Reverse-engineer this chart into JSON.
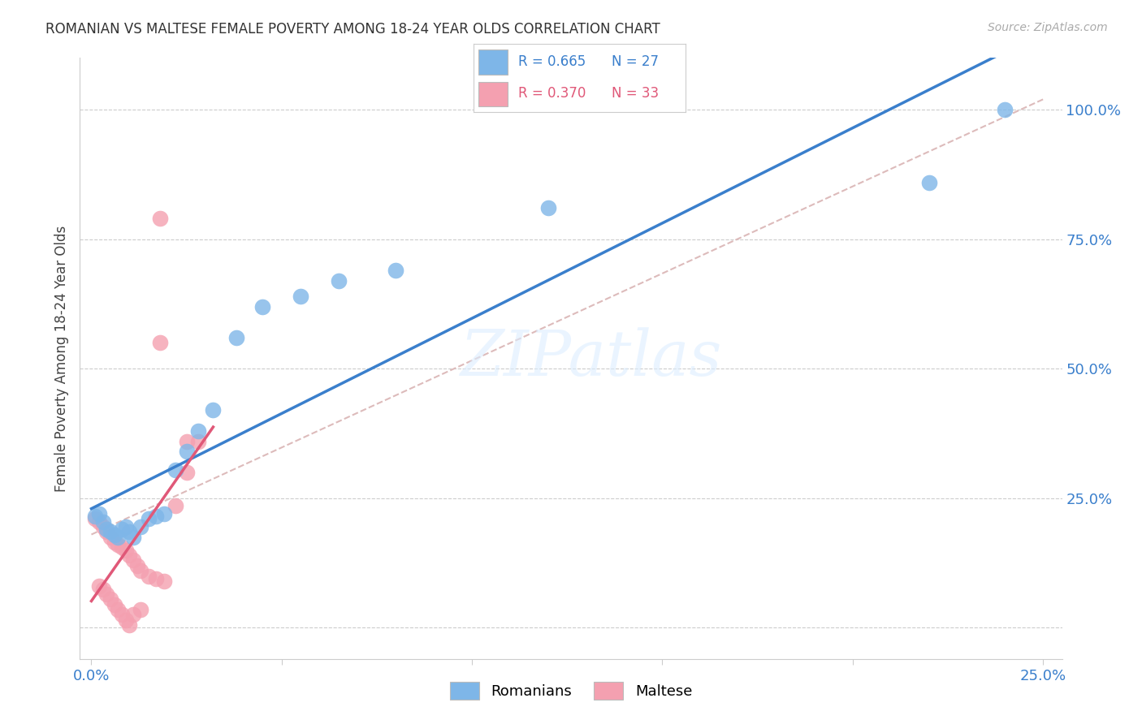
{
  "title": "ROMANIAN VS MALTESE FEMALE POVERTY AMONG 18-24 YEAR OLDS CORRELATION CHART",
  "source": "Source: ZipAtlas.com",
  "ylabel_label": "Female Poverty Among 18-24 Year Olds",
  "romanian_color": "#7EB6E8",
  "maltese_color": "#F4A0B0",
  "line_romanian_color": "#3A7FCC",
  "line_maltese_color": "#E05878",
  "romanian_R": "0.665",
  "romanian_N": "27",
  "maltese_R": "0.370",
  "maltese_N": "33",
  "legend_romanian": "Romanians",
  "legend_maltese": "Maltese",
  "watermark": "ZIPatlas",
  "romanian_x": [
    0.001,
    0.002,
    0.003,
    0.004,
    0.005,
    0.006,
    0.007,
    0.008,
    0.009,
    0.01,
    0.011,
    0.013,
    0.015,
    0.017,
    0.019,
    0.022,
    0.025,
    0.028,
    0.032,
    0.038,
    0.045,
    0.055,
    0.065,
    0.08,
    0.12,
    0.22,
    0.24
  ],
  "romanian_y": [
    0.215,
    0.22,
    0.205,
    0.19,
    0.185,
    0.18,
    0.175,
    0.19,
    0.195,
    0.185,
    0.175,
    0.195,
    0.21,
    0.215,
    0.22,
    0.305,
    0.34,
    0.38,
    0.42,
    0.56,
    0.62,
    0.64,
    0.67,
    0.69,
    0.81,
    0.86,
    1.0
  ],
  "maltese_x": [
    0.001,
    0.002,
    0.003,
    0.004,
    0.005,
    0.006,
    0.007,
    0.008,
    0.009,
    0.01,
    0.011,
    0.012,
    0.013,
    0.015,
    0.017,
    0.019,
    0.022,
    0.025,
    0.028,
    0.002,
    0.003,
    0.004,
    0.005,
    0.006,
    0.007,
    0.008,
    0.009,
    0.01,
    0.011,
    0.013,
    0.018,
    0.025,
    0.018
  ],
  "maltese_y": [
    0.21,
    0.205,
    0.195,
    0.185,
    0.175,
    0.165,
    0.16,
    0.155,
    0.15,
    0.14,
    0.13,
    0.12,
    0.11,
    0.1,
    0.095,
    0.09,
    0.235,
    0.3,
    0.36,
    0.08,
    0.075,
    0.065,
    0.055,
    0.045,
    0.035,
    0.025,
    0.015,
    0.005,
    0.025,
    0.035,
    0.55,
    0.36,
    0.79
  ],
  "xlim": [
    -0.003,
    0.255
  ],
  "ylim": [
    -0.06,
    1.1
  ],
  "x_tick_positions": [
    0.0,
    0.05,
    0.1,
    0.15,
    0.2,
    0.25
  ],
  "x_tick_labels": [
    "0.0%",
    "",
    "",
    "",
    "",
    "25.0%"
  ],
  "y_tick_positions": [
    0.0,
    0.25,
    0.5,
    0.75,
    1.0
  ],
  "y_tick_labels": [
    "",
    "25.0%",
    "50.0%",
    "75.0%",
    "100.0%"
  ],
  "ref_line_x": [
    0.0,
    0.25
  ],
  "ref_line_y": [
    0.18,
    1.02
  ]
}
